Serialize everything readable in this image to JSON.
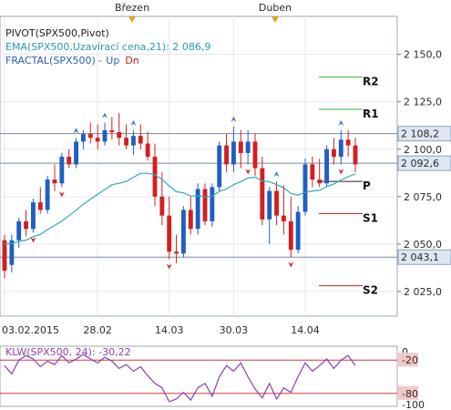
{
  "chart_data": [
    {
      "type": "candlestick",
      "instrument": "SPX500",
      "legend": {
        "line1": "PIVOT(SPX500,Pivot)",
        "line2": "EMA(SPX500,Uzavírací cena,21): 2 086,9",
        "line3": "FRACTAL(SPX500) -",
        "line3_up": "Up",
        "line3_dn": "Dn"
      },
      "top_month_labels": [
        "Březen",
        "Duben"
      ],
      "x_ticks": [
        "03.02.2015",
        "28.02",
        "14.03",
        "30.03",
        "14.04"
      ],
      "y_ticks": [
        "2 025,0",
        "2 050,0",
        "2 075,0",
        "2 100,0",
        "2 125,0",
        "2 150,0"
      ],
      "y_ticks_values": [
        2025,
        2050,
        2075,
        2100,
        2125,
        2150
      ],
      "ylim": [
        2012,
        2170
      ],
      "price_boxes": [
        "2 108,2",
        "2 092,6",
        "2 043,1"
      ],
      "price_box_values": [
        2108.2,
        2092.6,
        2043.1
      ],
      "pivot_levels": [
        {
          "name": "R2",
          "value": 2138
        },
        {
          "name": "R1",
          "value": 2121
        },
        {
          "name": "P",
          "value": 2083
        },
        {
          "name": "S1",
          "value": 2066
        },
        {
          "name": "S2",
          "value": 2028
        }
      ],
      "ohlc": [
        [
          2052,
          2055,
          2032,
          2036
        ],
        [
          2039,
          2055,
          2035,
          2052
        ],
        [
          2052,
          2064,
          2048,
          2062
        ],
        [
          2062,
          2068,
          2054,
          2058
        ],
        [
          2058,
          2074,
          2056,
          2072
        ],
        [
          2072,
          2080,
          2066,
          2068
        ],
        [
          2068,
          2086,
          2066,
          2084
        ],
        [
          2084,
          2092,
          2078,
          2082
        ],
        [
          2082,
          2098,
          2080,
          2096
        ],
        [
          2096,
          2100,
          2090,
          2092
        ],
        [
          2092,
          2106,
          2090,
          2104
        ],
        [
          2104,
          2110,
          2100,
          2108
        ],
        [
          2108,
          2114,
          2103,
          2106
        ],
        [
          2106,
          2113,
          2100,
          2104
        ],
        [
          2104,
          2114,
          2102,
          2110
        ],
        [
          2110,
          2117,
          2105,
          2109
        ],
        [
          2109,
          2119,
          2102,
          2106
        ],
        [
          2106,
          2113,
          2100,
          2102
        ],
        [
          2102,
          2110,
          2097,
          2107
        ],
        [
          2107,
          2113,
          2100,
          2103
        ],
        [
          2103,
          2109,
          2094,
          2096
        ],
        [
          2096,
          2103,
          2070,
          2075
        ],
        [
          2075,
          2088,
          2060,
          2065
        ],
        [
          2065,
          2075,
          2042,
          2046
        ],
        [
          2046,
          2055,
          2040,
          2045
        ],
        [
          2045,
          2070,
          2043,
          2068
        ],
        [
          2068,
          2075,
          2055,
          2058
        ],
        [
          2058,
          2082,
          2055,
          2079
        ],
        [
          2079,
          2082,
          2060,
          2062
        ],
        [
          2062,
          2082,
          2059,
          2080
        ],
        [
          2080,
          2104,
          2078,
          2102
        ],
        [
          2102,
          2108,
          2088,
          2092
        ],
        [
          2092,
          2112,
          2088,
          2104
        ],
        [
          2104,
          2110,
          2090,
          2098
        ],
        [
          2098,
          2110,
          2092,
          2104
        ],
        [
          2104,
          2108,
          2086,
          2090
        ],
        [
          2090,
          2096,
          2060,
          2063
        ],
        [
          2063,
          2080,
          2050,
          2078
        ],
        [
          2078,
          2083,
          2060,
          2065
        ],
        [
          2065,
          2081,
          2055,
          2062
        ],
        [
          2062,
          2075,
          2043,
          2047
        ],
        [
          2047,
          2070,
          2045,
          2067
        ],
        [
          2067,
          2095,
          2065,
          2092
        ],
        [
          2092,
          2096,
          2080,
          2084
        ],
        [
          2084,
          2095,
          2080,
          2082
        ],
        [
          2082,
          2102,
          2080,
          2100
        ],
        [
          2100,
          2106,
          2092,
          2096
        ],
        [
          2096,
          2110,
          2092,
          2105
        ],
        [
          2105,
          2110,
          2096,
          2102
        ],
        [
          2102,
          2106,
          2088,
          2092
        ]
      ],
      "ema": [
        2050,
        2050.3,
        2051.5,
        2052.1,
        2053.9,
        2055.1,
        2057.6,
        2059.8,
        2062.2,
        2064.9,
        2067.8,
        2071,
        2073.6,
        2076.2,
        2078.7,
        2081.3,
        2082,
        2083,
        2085.2,
        2087.3,
        2087.3,
        2086.5,
        2084.2,
        2080.6,
        2077.6,
        2077,
        2075.3,
        2075.6,
        2074.8,
        2075.3,
        2077.7,
        2079,
        2081.3,
        2082.9,
        2084.8,
        2085.3,
        2083.3,
        2082.9,
        2081.3,
        2079.6,
        2076.7,
        2075.8,
        2077.3,
        2078,
        2078.3,
        2080.3,
        2081.7,
        2083.8,
        2085.5,
        2086.9
      ],
      "fractals": {
        "up": [
          10,
          14,
          18,
          32,
          38,
          47
        ],
        "down": [
          4,
          8,
          23,
          34,
          40,
          47
        ]
      },
      "series_colors": {
        "up": "#1f5fc2",
        "down": "#d21f1f",
        "ema": "#35a8b8",
        "fractal_up": "#4a78c9",
        "fractal_down": "#cc2b2b"
      }
    },
    {
      "type": "line",
      "title": "KLW(SPX500, 24): -30,22",
      "y_ticks": [
        "0",
        "-20",
        "-80",
        "-100"
      ],
      "y_ticks_values": [
        0,
        -20,
        -80,
        -100
      ],
      "ylim": [
        -100,
        0
      ],
      "levels": [
        -20,
        -80
      ],
      "values": [
        -30,
        -45,
        -20,
        -12,
        -18,
        -32,
        -22,
        -28,
        -12,
        -25,
        -18,
        -10,
        -18,
        -25,
        -15,
        -22,
        -35,
        -28,
        -40,
        -32,
        -48,
        -62,
        -70,
        -95,
        -90,
        -78,
        -92,
        -70,
        -62,
        -85,
        -50,
        -30,
        -40,
        -25,
        -50,
        -72,
        -88,
        -62,
        -90,
        -70,
        -78,
        -50,
        -25,
        -40,
        -30,
        -18,
        -35,
        -20,
        -12,
        -30
      ],
      "line_color": "#8a3fb5"
    }
  ]
}
